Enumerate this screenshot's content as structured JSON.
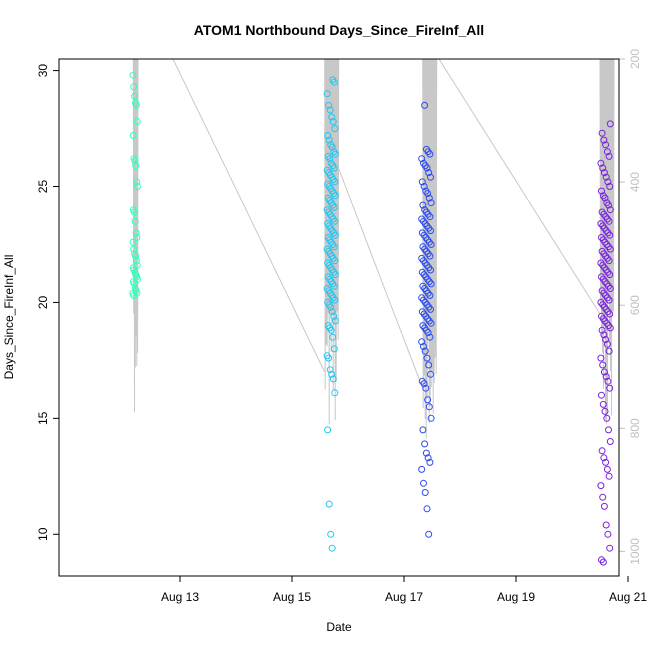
{
  "chart_data": {
    "type": "scatter",
    "title": "ATOM1 Northbound Days_Since_FireInf_All",
    "xlabel": "Date",
    "ylabel": "Days_Since_FireInf_All",
    "x_unit": "date (2013-08)",
    "xlim": [
      "2013-08-11",
      "2013-08-21"
    ],
    "ylim": [
      8.2,
      30.5
    ],
    "right_axis_lim": [
      200,
      1040
    ],
    "x_ticks": [
      {
        "value": "2013-08-13",
        "label": "Aug 13"
      },
      {
        "value": "2013-08-15",
        "label": "Aug 15"
      },
      {
        "value": "2013-08-17",
        "label": "Aug 17"
      },
      {
        "value": "2013-08-19",
        "label": "Aug 19"
      },
      {
        "value": "2013-08-21",
        "label": "Aug 21"
      }
    ],
    "y_ticks": [
      10,
      15,
      20,
      25,
      30
    ],
    "right_ticks": [
      200,
      400,
      600,
      800,
      1000
    ],
    "grid": false,
    "series": [
      {
        "color": "#33ffbb",
        "center": "2013-08-12 04:48",
        "spread_hours": 2,
        "y": [
          29.8,
          29.3,
          28.9,
          28.6,
          28.5,
          27.8,
          27.2,
          26.2,
          26.1,
          25.9,
          25.2,
          25.0,
          24.0,
          23.9,
          23.5,
          23.0,
          22.8,
          22.6,
          22.3,
          22.1,
          22.0,
          21.8,
          21.6,
          21.5,
          21.4,
          21.3,
          21.2,
          21.1,
          21.0,
          20.9,
          20.8,
          20.6,
          20.5,
          20.4,
          20.4,
          20.3
        ]
      },
      {
        "color": "#24c6f2",
        "center": "2013-08-15 16:48",
        "spread_hours": 3.5,
        "y": [
          29.6,
          29.5,
          29.0,
          28.5,
          28.3,
          28.0,
          27.8,
          27.5,
          27.2,
          27.0,
          26.8,
          26.7,
          26.5,
          26.4,
          26.3,
          26.2,
          26.0,
          25.9,
          25.8,
          25.7,
          25.6,
          25.5,
          25.4,
          25.3,
          25.2,
          25.1,
          25.0,
          24.9,
          24.8,
          24.7,
          24.6,
          24.5,
          24.4,
          24.3,
          24.2,
          24.1,
          24.0,
          23.9,
          23.8,
          23.7,
          23.6,
          23.5,
          23.4,
          23.3,
          23.2,
          23.1,
          23.0,
          22.9,
          22.8,
          22.7,
          22.6,
          22.5,
          22.4,
          22.3,
          22.2,
          22.1,
          22.0,
          21.9,
          21.8,
          21.7,
          21.6,
          21.5,
          21.4,
          21.3,
          21.2,
          21.1,
          21.0,
          20.9,
          20.8,
          20.7,
          20.6,
          20.5,
          20.4,
          20.3,
          20.2,
          20.1,
          20.0,
          19.9,
          19.8,
          19.6,
          19.4,
          19.2,
          19.0,
          18.9,
          18.8,
          18.5,
          18.0,
          17.7,
          17.6,
          17.1,
          16.9,
          16.7,
          16.1,
          14.5,
          11.3,
          10.0,
          9.4
        ]
      },
      {
        "color": "#2b4cf0",
        "center": "2013-08-17 09:36",
        "spread_hours": 4,
        "y": [
          28.5,
          26.6,
          26.5,
          26.4,
          26.2,
          26.0,
          25.9,
          25.8,
          25.6,
          25.4,
          25.2,
          25.0,
          24.8,
          24.7,
          24.5,
          24.3,
          24.2,
          24.0,
          23.9,
          23.8,
          23.7,
          23.6,
          23.5,
          23.4,
          23.3,
          23.2,
          23.1,
          23.0,
          22.9,
          22.8,
          22.7,
          22.6,
          22.5,
          22.4,
          22.3,
          22.2,
          22.1,
          22.0,
          21.9,
          21.8,
          21.7,
          21.6,
          21.5,
          21.4,
          21.3,
          21.2,
          21.1,
          21.0,
          20.9,
          20.8,
          20.7,
          20.6,
          20.5,
          20.4,
          20.3,
          20.2,
          20.1,
          20.0,
          19.9,
          19.8,
          19.7,
          19.6,
          19.5,
          19.4,
          19.3,
          19.2,
          19.1,
          19.0,
          18.9,
          18.8,
          18.7,
          18.5,
          18.3,
          18.1,
          17.9,
          17.6,
          17.3,
          16.9,
          16.6,
          16.5,
          16.3,
          15.8,
          15.5,
          15.0,
          14.5,
          13.9,
          13.5,
          13.3,
          13.1,
          12.8,
          12.2,
          11.8,
          11.1,
          10.0
        ]
      },
      {
        "color": "#7a22e0",
        "center": "2013-08-20 14:24",
        "spread_hours": 4,
        "y": [
          27.7,
          27.3,
          27.0,
          26.8,
          26.5,
          26.3,
          26.0,
          25.8,
          25.6,
          25.4,
          25.2,
          25.0,
          24.8,
          24.6,
          24.5,
          24.3,
          24.2,
          24.0,
          23.9,
          23.8,
          23.7,
          23.6,
          23.5,
          23.4,
          23.3,
          23.2,
          23.1,
          23.0,
          22.9,
          22.8,
          22.7,
          22.6,
          22.5,
          22.4,
          22.3,
          22.2,
          22.1,
          22.0,
          21.9,
          21.8,
          21.7,
          21.6,
          21.5,
          21.4,
          21.3,
          21.2,
          21.1,
          21.0,
          20.9,
          20.8,
          20.7,
          20.6,
          20.5,
          20.4,
          20.3,
          20.2,
          20.1,
          20.0,
          19.9,
          19.8,
          19.7,
          19.6,
          19.5,
          19.4,
          19.3,
          19.2,
          19.1,
          19.0,
          18.9,
          18.8,
          18.6,
          18.4,
          18.2,
          17.9,
          17.6,
          17.3,
          17.0,
          16.8,
          16.6,
          16.3,
          16.0,
          15.6,
          15.3,
          15.0,
          14.5,
          14.0,
          13.6,
          13.3,
          13.1,
          12.8,
          12.5,
          12.1,
          11.6,
          11.2,
          10.4,
          10.0,
          9.4,
          8.9,
          8.8
        ]
      }
    ],
    "line_series": {
      "color": "#c8c8c8",
      "description_free": true,
      "segments": [
        {
          "x0": "2013-08-12 04:00",
          "x1": "2013-08-12 06:00",
          "top": 30.5,
          "bottom": 14.0
        },
        {
          "x0": "2013-08-15 14:00",
          "x1": "2013-08-15 20:00",
          "top": 30.5,
          "bottom": 14.0
        },
        {
          "x0": "2013-08-17 08:00",
          "x1": "2013-08-17 14:00",
          "top": 30.5,
          "bottom": 13.8
        },
        {
          "x0": "2013-08-20 12:00",
          "x1": "2013-08-20 18:00",
          "top": 30.5,
          "bottom": 14.3
        }
      ],
      "connectors": [
        {
          "from": [
            "2013-08-12 21:00",
            30.5
          ],
          "to": [
            "2013-08-15 14:00",
            17.0
          ]
        },
        {
          "from": [
            "2013-08-15 18:00",
            26.3
          ],
          "to": [
            "2013-08-17 08:00",
            16.3
          ]
        },
        {
          "from": [
            "2013-08-17 15:00",
            30.5
          ],
          "to": [
            "2013-08-20 12:00",
            19.5
          ]
        }
      ]
    }
  }
}
